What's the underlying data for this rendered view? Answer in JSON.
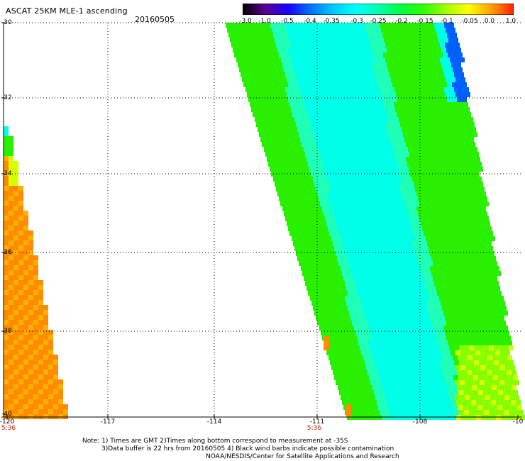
{
  "header": {
    "title": "ASCAT 25KM MLE-1 ascending",
    "date": "20160505"
  },
  "colorbar": {
    "labels": [
      "-3.0",
      "-1.0",
      "-0.5",
      "-0.4",
      "-0.35",
      "-0.3",
      "-0.25",
      "-0.2",
      "-0.15",
      "-0.1",
      "-0.05",
      "0.0",
      "1.0"
    ],
    "colors": [
      "#000000",
      "#5a0090",
      "#1a00ff",
      "#0070ff",
      "#00c8ff",
      "#00ffff",
      "#00ffb0",
      "#00ff40",
      "#30ff00",
      "#a0ff00",
      "#ffff00",
      "#ffa000",
      "#ff2000"
    ]
  },
  "axes": {
    "y_ticks": [
      "-30",
      "-32",
      "-34",
      "-36",
      "-38",
      "-40"
    ],
    "x_ticks": [
      "-120",
      "-117",
      "-114",
      "-111",
      "-108",
      "-10"
    ],
    "time_labels": [
      "5:36",
      "5:36"
    ]
  },
  "notes": {
    "line1": "Note: 1) Times are GMT 2)Times along bottom correspond to measurement at -35S",
    "line2": "3)Data buffer is 22 hrs from 20160505 4) Black wind barbs indicate possible contamination",
    "line3": "NOAA/NESDIS/Center for Satellite Applications and Research"
  },
  "palette": {
    "swath_orange": "#ff8c00",
    "swath_orange_light": "#ffb000",
    "swath_green": "#28f000",
    "swath_cyan": "#00ffe8",
    "swath_blue": "#0060ff",
    "swath_yellow": "#d8ff00"
  }
}
